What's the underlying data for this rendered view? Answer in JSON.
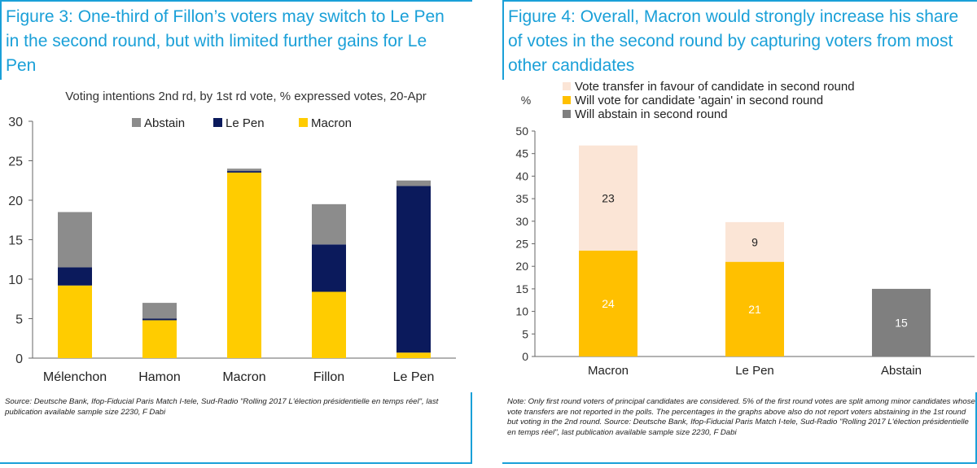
{
  "figure3": {
    "title": "Figure 3: One-third of Fillon’s voters may switch to Le Pen in the second round, but with limited further gains for Le Pen",
    "source": "Source: Deutsche Bank, Ifop-Fiducial Paris Match I-tele, Sud-Radio \"Rolling 2017 L'élection présidentielle en temps réel\", last publication available sample size 2230, F Dabi"
  },
  "figure4": {
    "title": "Figure 4: Overall, Macron would strongly increase his share of votes in the second round by capturing voters from most other candidates",
    "source": "Note: Only first round voters of principal candidates are considered. 5% of the first round votes are split among minor candidates whose vote transfers are not reported in the polls. The percentages in the graphs above also do not report voters abstaining in the 1st round but voting in the 2nd round. Source: Deutsche Bank, Ifop-Fiducial Paris Match I-tele, Sud-Radio \"Rolling 2017 L'élection présidentielle en temps réel\", last publication available sample size 2230, F Dabi"
  },
  "chart_data": [
    {
      "type": "bar",
      "stacked": true,
      "title": "Voting intentions 2nd rd, by 1st rd vote, % expressed votes, 20-Apr",
      "categories": [
        "Mélenchon",
        "Hamon",
        "Macron",
        "Fillon",
        "Le Pen"
      ],
      "series": [
        {
          "name": "Macron",
          "color": "#ffcc00",
          "values": [
            9.2,
            4.8,
            23.5,
            8.4,
            0.7
          ]
        },
        {
          "name": "Le Pen",
          "color": "#0b1a5c",
          "values": [
            2.3,
            0.2,
            0.2,
            6.0,
            21.1
          ]
        },
        {
          "name": "Abstain",
          "color": "#8c8c8c",
          "values": [
            7.0,
            2.0,
            0.3,
            5.1,
            0.7
          ]
        }
      ],
      "legend_order": [
        "Abstain",
        "Le Pen",
        "Macron"
      ],
      "legend_position": "top",
      "ylim": [
        0,
        30
      ],
      "yticks": [
        0,
        5,
        10,
        15,
        20,
        25,
        30
      ],
      "grid": false
    },
    {
      "type": "bar",
      "stacked": true,
      "ylabel": "%",
      "categories": [
        "Macron",
        "Le Pen",
        "Abstain"
      ],
      "series": [
        {
          "name": "Will vote for candidate 'again' in second round",
          "color": "#ffc000",
          "values": [
            23.5,
            21,
            0
          ],
          "labels": [
            "24",
            "21",
            ""
          ]
        },
        {
          "name": "Vote transfer in favour of candidate in second round",
          "color": "#fbe5d6",
          "values": [
            23.3,
            8.8,
            0
          ],
          "labels": [
            "23",
            "9",
            ""
          ]
        },
        {
          "name": "Will abstain in second round",
          "color": "#7f7f7f",
          "values": [
            0,
            0,
            15
          ],
          "labels": [
            "",
            "",
            "15"
          ]
        }
      ],
      "legend_order": [
        "Vote transfer in favour of candidate in second round",
        "Will vote for candidate 'again' in second round",
        "Will abstain in second round"
      ],
      "legend_position": "top-left",
      "ylim": [
        0,
        50
      ],
      "yticks": [
        0,
        5,
        10,
        15,
        20,
        25,
        30,
        35,
        40,
        45,
        50
      ],
      "grid": false
    }
  ]
}
